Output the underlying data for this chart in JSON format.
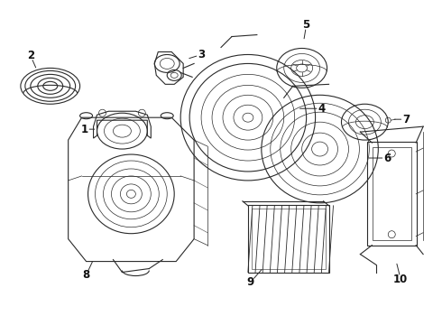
{
  "bg_color": "#ffffff",
  "line_color": "#2a2a2a",
  "label_color": "#111111",
  "figsize": [
    4.9,
    3.6
  ],
  "dpi": 100
}
